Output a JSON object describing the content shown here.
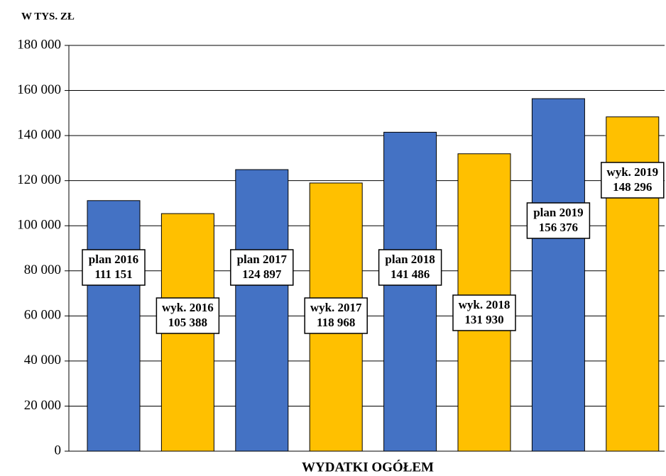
{
  "chart_data": {
    "type": "bar",
    "y_axis_title": "W TYS. ZŁ",
    "x_axis_title": "WYDATKI OGÓŁEM",
    "categories": [
      "plan 2016",
      "wyk. 2016",
      "plan 2017",
      "wyk. 2017",
      "plan 2018",
      "wyk. 2018",
      "plan 2019",
      "wyk. 2019"
    ],
    "values": [
      111151,
      105388,
      124897,
      118968,
      141486,
      131930,
      156376,
      148296
    ],
    "value_labels": [
      "111 151",
      "105 388",
      "124 897",
      "118 968",
      "141 486",
      "131 930",
      "156 376",
      "148 296"
    ],
    "colors": [
      "#4472c4",
      "#ffc000",
      "#4472c4",
      "#ffc000",
      "#4472c4",
      "#ffc000",
      "#4472c4",
      "#ffc000"
    ],
    "ylim": [
      0,
      180000
    ],
    "yticks": [
      0,
      {
        "value": 20000,
        "label": "20 000"
      },
      {
        "value": 40000,
        "label": "40 000"
      },
      {
        "value": 60000,
        "label": "60 000"
      },
      {
        "value": 80000,
        "label": "80 000"
      },
      {
        "value": 100000,
        "label": "100 000"
      },
      {
        "value": 120000,
        "label": "120 000"
      },
      {
        "value": 140000,
        "label": "140 000"
      },
      {
        "value": 160000,
        "label": "160 000"
      },
      {
        "value": 180000,
        "label": "180 000"
      }
    ],
    "grid": true
  }
}
